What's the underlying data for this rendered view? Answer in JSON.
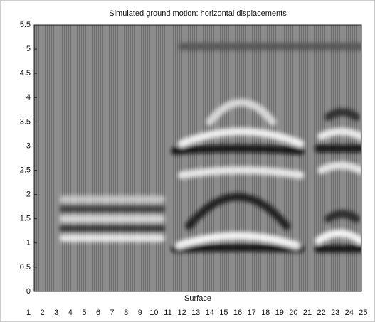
{
  "chart_data": {
    "type": "wiggle",
    "title": "Simulated ground motion: horizontal displacements",
    "x_label": "Surface",
    "categories": [
      "1",
      "2",
      "3",
      "4",
      "5",
      "6",
      "7",
      "8",
      "9",
      "10",
      "11",
      "12",
      "13",
      "14",
      "15",
      "16",
      "17",
      "18",
      "19",
      "20",
      "21",
      "22",
      "23",
      "24",
      "25"
    ],
    "ylim": [
      0,
      5.5
    ],
    "yticks": [
      0,
      0.5,
      1,
      1.5,
      2,
      2.5,
      3,
      3.5,
      4,
      4.5,
      5,
      5.5
    ],
    "bands": [
      {
        "from": 3.5,
        "to": 10.5,
        "peak": 1.1,
        "edge": 1.1,
        "color": "#eeeeee"
      },
      {
        "from": 3.5,
        "to": 10.5,
        "peak": 1.3,
        "edge": 1.3,
        "color": "#3a3a3a"
      },
      {
        "from": 3.5,
        "to": 10.5,
        "peak": 1.5,
        "edge": 1.5,
        "color": "#dddddd"
      },
      {
        "from": 3.5,
        "to": 10.5,
        "peak": 1.7,
        "edge": 1.7,
        "color": "#444444"
      },
      {
        "from": 3.5,
        "to": 10.5,
        "peak": 1.9,
        "edge": 1.9,
        "color": "#cccccc"
      },
      {
        "from": 11.5,
        "to": 20.5,
        "peak": 0.9,
        "edge": 0.88,
        "color": "#0a0a0a"
      },
      {
        "from": 11.8,
        "to": 20.2,
        "peak": 1.15,
        "edge": 0.95,
        "color": "#ffffff"
      },
      {
        "from": 12.5,
        "to": 19.5,
        "peak": 1.95,
        "edge": 1.35,
        "color": "#151515"
      },
      {
        "from": 12,
        "to": 20.5,
        "peak": 2.5,
        "edge": 2.4,
        "color": "#f0f0f0"
      },
      {
        "from": 11.5,
        "to": 20.5,
        "peak": 2.95,
        "edge": 2.9,
        "color": "#0a0a0a"
      },
      {
        "from": 12,
        "to": 20.5,
        "peak": 3.3,
        "edge": 3.05,
        "color": "#f8f8f8"
      },
      {
        "from": 14,
        "to": 18.5,
        "peak": 3.9,
        "edge": 3.5,
        "color": "#e0e0e0"
      },
      {
        "from": 21.8,
        "to": 24.8,
        "peak": 0.88,
        "edge": 0.88,
        "color": "#0a0a0a"
      },
      {
        "from": 21.8,
        "to": 24.8,
        "peak": 1.2,
        "edge": 1.05,
        "color": "#ffffff"
      },
      {
        "from": 22.5,
        "to": 24.5,
        "peak": 1.6,
        "edge": 1.5,
        "color": "#222222"
      },
      {
        "from": 22,
        "to": 24.8,
        "peak": 2.6,
        "edge": 2.5,
        "color": "#eeeeee"
      },
      {
        "from": 21.8,
        "to": 24.8,
        "peak": 2.95,
        "edge": 2.95,
        "color": "#0a0a0a"
      },
      {
        "from": 22,
        "to": 24.8,
        "peak": 3.3,
        "edge": 3.2,
        "color": "#f4f4f4"
      },
      {
        "from": 22.5,
        "to": 24.5,
        "peak": 3.7,
        "edge": 3.6,
        "color": "#2a2a2a"
      },
      {
        "from": 12,
        "to": 24.8,
        "peak": 5.05,
        "edge": 5.05,
        "color": "#555555"
      }
    ]
  }
}
